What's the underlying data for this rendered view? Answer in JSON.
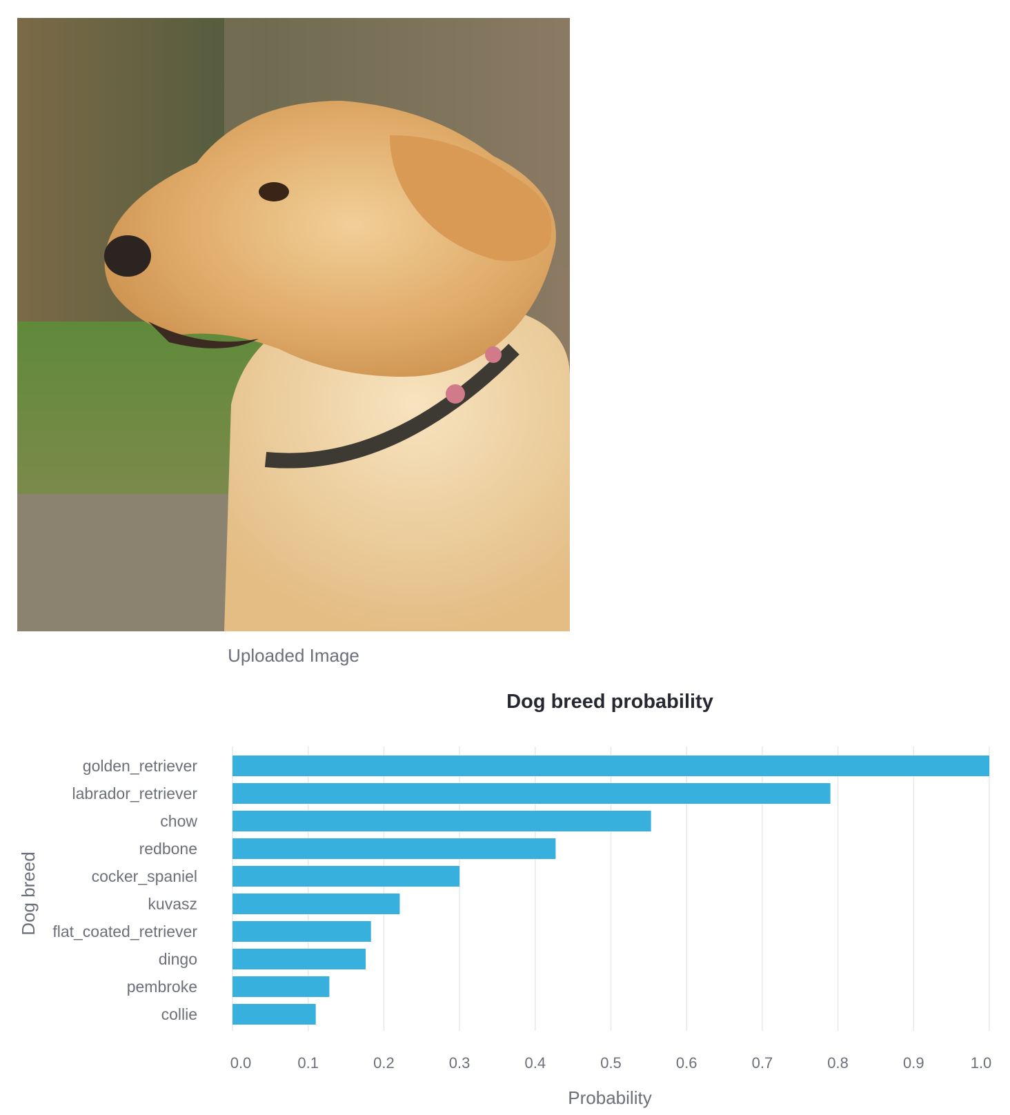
{
  "image": {
    "caption": "Uploaded Image",
    "subject": "dog-photo"
  },
  "chart_data": {
    "type": "bar",
    "orientation": "horizontal",
    "title": "Dog breed probability",
    "xlabel": "Probability",
    "ylabel": "Dog breed",
    "xlim": [
      0,
      1
    ],
    "xticks": [
      "0.0",
      "0.1",
      "0.2",
      "0.3",
      "0.4",
      "0.5",
      "0.6",
      "0.7",
      "0.8",
      "0.9",
      "1.0"
    ],
    "grid": true,
    "categories": [
      "golden_retriever",
      "labrador_retriever",
      "chow",
      "redbone",
      "cocker_spaniel",
      "kuvasz",
      "flat_coated_retriever",
      "dingo",
      "pembroke",
      "collie"
    ],
    "values": [
      1.0,
      0.79,
      0.553,
      0.427,
      0.3,
      0.221,
      0.183,
      0.176,
      0.128,
      0.11
    ],
    "bar_color": "#38b0de",
    "grid_color": "#e6e8ec",
    "text_color": "#6b6f7a",
    "title_color": "#262730"
  }
}
